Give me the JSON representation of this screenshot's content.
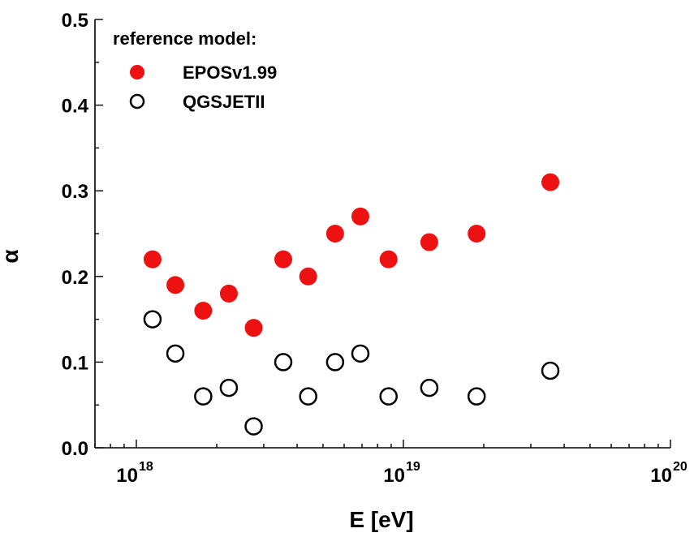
{
  "chart_data": {
    "type": "scatter",
    "xlabel": "E [eV]",
    "ylabel": "α",
    "xscale": "log",
    "xlim": [
      7e+17,
      1e+20
    ],
    "ylim": [
      0,
      0.5
    ],
    "xticks": [
      {
        "value": 1e+18,
        "base": "10",
        "exp": "18"
      },
      {
        "value": 1e+19,
        "base": "10",
        "exp": "19"
      },
      {
        "value": 1e+20,
        "base": "10",
        "exp": "20"
      }
    ],
    "yticks": [
      {
        "value": 0.0,
        "label": "0.0"
      },
      {
        "value": 0.1,
        "label": "0.1"
      },
      {
        "value": 0.2,
        "label": "0.2"
      },
      {
        "value": 0.3,
        "label": "0.3"
      },
      {
        "value": 0.4,
        "label": "0.4"
      },
      {
        "value": 0.5,
        "label": "0.5"
      }
    ],
    "legend": {
      "title": "reference model:",
      "placement": "top-left"
    },
    "series": [
      {
        "name": "EPOSv1.99",
        "marker": "filled-circle",
        "color": "#ee1111",
        "x": [
          1.15e+18,
          1.4e+18,
          1.78e+18,
          2.22e+18,
          2.75e+18,
          3.55e+18,
          4.4e+18,
          5.55e+18,
          6.9e+18,
          8.8e+18,
          1.25e+19,
          1.88e+19,
          3.55e+19
        ],
        "y": [
          0.22,
          0.19,
          0.16,
          0.18,
          0.14,
          0.22,
          0.2,
          0.25,
          0.27,
          0.22,
          0.24,
          0.25,
          0.31
        ]
      },
      {
        "name": "QGSJETII",
        "marker": "open-circle",
        "color": "#000000",
        "x": [
          1.15e+18,
          1.4e+18,
          1.78e+18,
          2.22e+18,
          2.75e+18,
          3.55e+18,
          4.4e+18,
          5.55e+18,
          6.9e+18,
          8.8e+18,
          1.25e+19,
          1.88e+19,
          3.55e+19
        ],
        "y": [
          0.15,
          0.11,
          0.06,
          0.07,
          0.025,
          0.1,
          0.06,
          0.1,
          0.11,
          0.06,
          0.07,
          0.06,
          0.09
        ]
      }
    ]
  }
}
